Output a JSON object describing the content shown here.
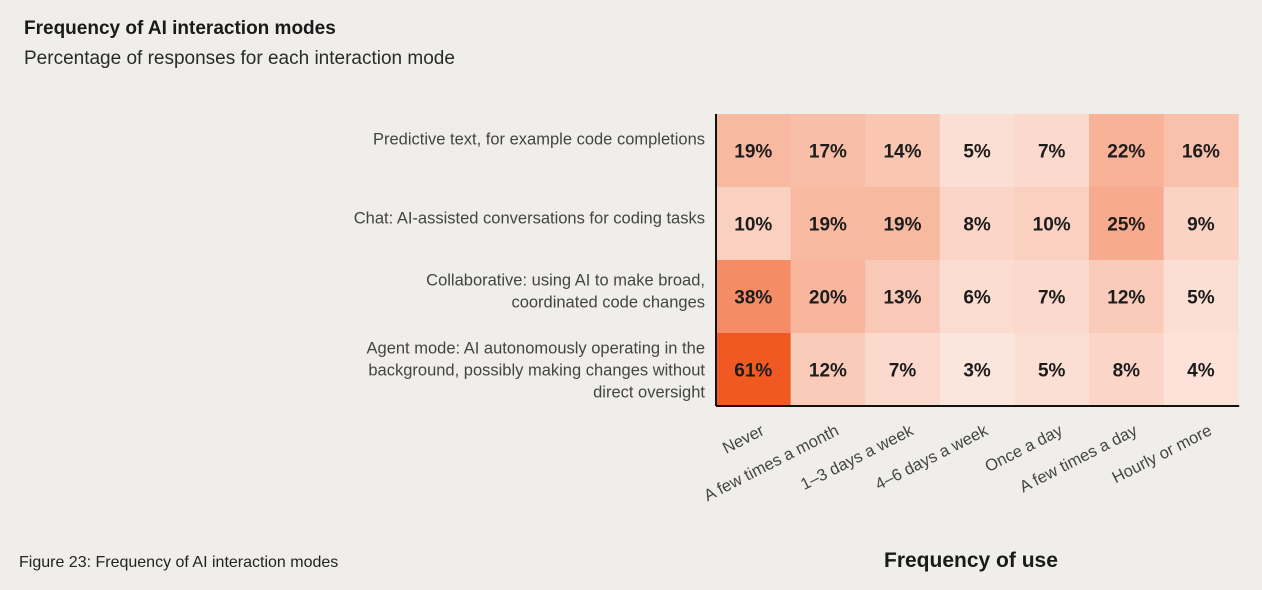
{
  "chart_data": {
    "type": "heatmap",
    "title": "Frequency of AI interaction modes",
    "subtitle": "Percentage of responses for each interaction mode",
    "xlabel": "Frequency of use",
    "ylabel": "",
    "caption": "Figure 23: Frequency of AI interaction modes",
    "value_suffix": "%",
    "columns": [
      "Never",
      "A few times a month",
      "1–3 days a week",
      "4–6 days a week",
      "Once a day",
      "A few times a day",
      "Hourly or more"
    ],
    "rows": [
      {
        "label": [
          "Predictive text, for example code completions"
        ],
        "values": [
          19,
          17,
          14,
          5,
          7,
          22,
          16
        ]
      },
      {
        "label": [
          "Chat: AI-assisted conversations for coding tasks"
        ],
        "values": [
          10,
          19,
          19,
          8,
          10,
          25,
          9
        ]
      },
      {
        "label": [
          "Collaborative: using AI to make broad,",
          "coordinated code changes"
        ],
        "values": [
          38,
          20,
          13,
          6,
          7,
          12,
          5
        ]
      },
      {
        "label": [
          "Agent mode: AI autonomously operating in the",
          "background, possibly making changes without",
          "direct oversight"
        ],
        "values": [
          61,
          12,
          7,
          3,
          5,
          8,
          4
        ]
      }
    ],
    "color_scale": {
      "low": "#fdf1ec",
      "high": "#f05a22",
      "min": 0,
      "max": 61
    }
  }
}
